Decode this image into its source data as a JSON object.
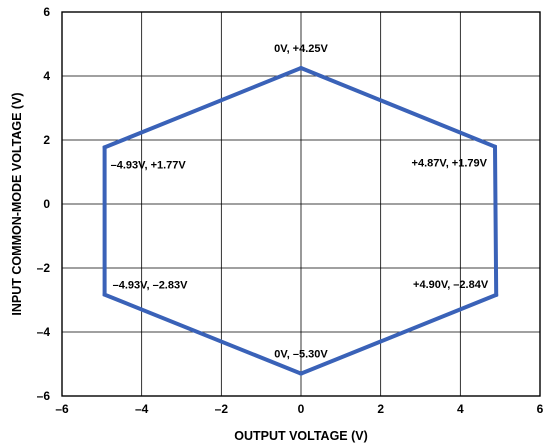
{
  "chart_data": {
    "type": "line",
    "title": "",
    "xlabel": "OUTPUT VOLTAGE (V)",
    "ylabel": "INPUT COMMON-MODE VOLTAGE (V)",
    "xlim": [
      -6,
      6
    ],
    "ylim": [
      -6,
      6
    ],
    "xticks": [
      -6,
      -4,
      -2,
      0,
      2,
      4,
      6
    ],
    "yticks": [
      -6,
      -4,
      -2,
      0,
      2,
      4,
      6
    ],
    "xtick_labels": [
      "–6",
      "–4",
      "–2",
      "0",
      "2",
      "4",
      "6"
    ],
    "ytick_labels": [
      "–6",
      "–4",
      "–2",
      "0",
      "2",
      "4",
      "6"
    ],
    "grid": true,
    "series": [
      {
        "color": "#3a62b8",
        "closed": true,
        "points": [
          {
            "x": 0,
            "y": 4.25
          },
          {
            "x": 4.87,
            "y": 1.79
          },
          {
            "x": 4.9,
            "y": -2.84
          },
          {
            "x": 0,
            "y": -5.3
          },
          {
            "x": -4.93,
            "y": -2.83
          },
          {
            "x": -4.93,
            "y": 1.77
          }
        ]
      }
    ],
    "annotations": [
      {
        "text": "0V, +4.25V",
        "x": 0,
        "y": 4.25,
        "anchor": "above"
      },
      {
        "text": "+4.87V, +1.79V",
        "x": 4.87,
        "y": 1.79,
        "anchor": "below-left"
      },
      {
        "text": "+4.90V, –2.84V",
        "x": 4.9,
        "y": -2.84,
        "anchor": "above-left"
      },
      {
        "text": "0V, –5.30V",
        "x": 0,
        "y": -5.3,
        "anchor": "above"
      },
      {
        "text": "–4.93V, –2.83V",
        "x": -4.93,
        "y": -2.83,
        "anchor": "above-right"
      },
      {
        "text": "–4.93V, +1.77V",
        "x": -4.93,
        "y": 1.77,
        "anchor": "below-right"
      }
    ]
  }
}
